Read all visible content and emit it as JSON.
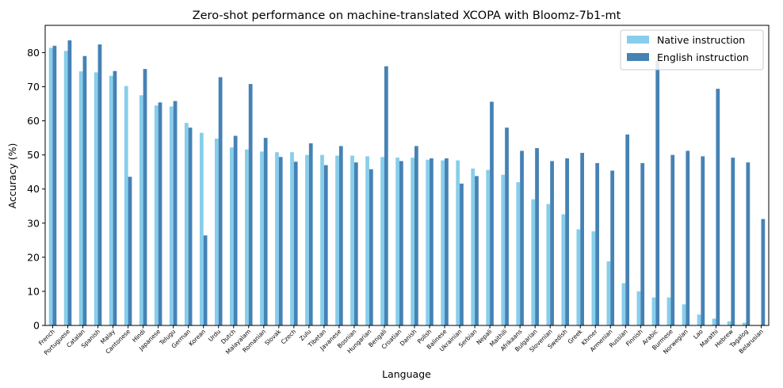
{
  "chart_data": {
    "type": "bar",
    "title": "Zero-shot performance on machine-translated XCOPA with Bloomz-7b1-mt",
    "xlabel": "Language",
    "ylabel": "Accuracy (%)",
    "ylim": [
      0,
      88
    ],
    "yticks": [
      0,
      10,
      20,
      30,
      40,
      50,
      60,
      70,
      80
    ],
    "grid": false,
    "legend_position": "top-right",
    "categories": [
      "French",
      "Portuguese",
      "Catalan",
      "Spanish",
      "Malay",
      "Cantonese",
      "Hindi",
      "Japanese",
      "Telugu",
      "German",
      "Korean",
      "Urdu",
      "Dutch",
      "Malayalam",
      "Romanian",
      "Slovak",
      "Czech",
      "Zulu",
      "Tibetan",
      "Javanese",
      "Bosnian",
      "Hungarian",
      "Bengali",
      "Croatian",
      "Danish",
      "Polish",
      "Balinese",
      "Ukrainian",
      "Serbian",
      "Nepali",
      "Maithili",
      "Afrikaans",
      "Bulgarian",
      "Slovenian",
      "Swedish",
      "Greek",
      "Khmer",
      "Armenian",
      "Russian",
      "Finnish",
      "Arabic",
      "Burmese",
      "Norwegian",
      "Lao",
      "Marathi",
      "Hebrew",
      "Tagalog",
      "Belarusian"
    ],
    "series": [
      {
        "name": "Native instruction",
        "color": "#87ceeb",
        "values": [
          81.4,
          80.5,
          74.5,
          74.2,
          73.2,
          70.2,
          67.5,
          64.5,
          64.2,
          59.4,
          56.5,
          54.8,
          52.2,
          51.6,
          51.0,
          50.8,
          50.8,
          50.0,
          50.0,
          49.8,
          49.8,
          49.6,
          49.4,
          49.2,
          49.2,
          48.6,
          48.4,
          48.4,
          46.0,
          45.6,
          44.2,
          42.0,
          37.0,
          35.6,
          32.6,
          28.2,
          27.6,
          18.8,
          12.4,
          10.0,
          8.2,
          8.2,
          6.2,
          3.2,
          2.0,
          1.2,
          0.8,
          0.0
        ]
      },
      {
        "name": "English instruction",
        "color": "#4682b4",
        "values": [
          82.0,
          83.6,
          79.0,
          82.4,
          74.6,
          43.6,
          75.2,
          65.4,
          65.8,
          58.0,
          26.4,
          72.8,
          55.6,
          70.8,
          55.0,
          49.4,
          48.0,
          53.4,
          47.0,
          52.6,
          47.8,
          45.8,
          76.0,
          48.2,
          52.6,
          49.0,
          49.0,
          41.6,
          43.8,
          65.6,
          58.0,
          51.2,
          52.0,
          48.2,
          49.0,
          50.6,
          47.6,
          45.4,
          56.0,
          47.6,
          77.6,
          50.0,
          51.2,
          49.6,
          69.4,
          49.2,
          47.8,
          31.2
        ]
      }
    ]
  }
}
